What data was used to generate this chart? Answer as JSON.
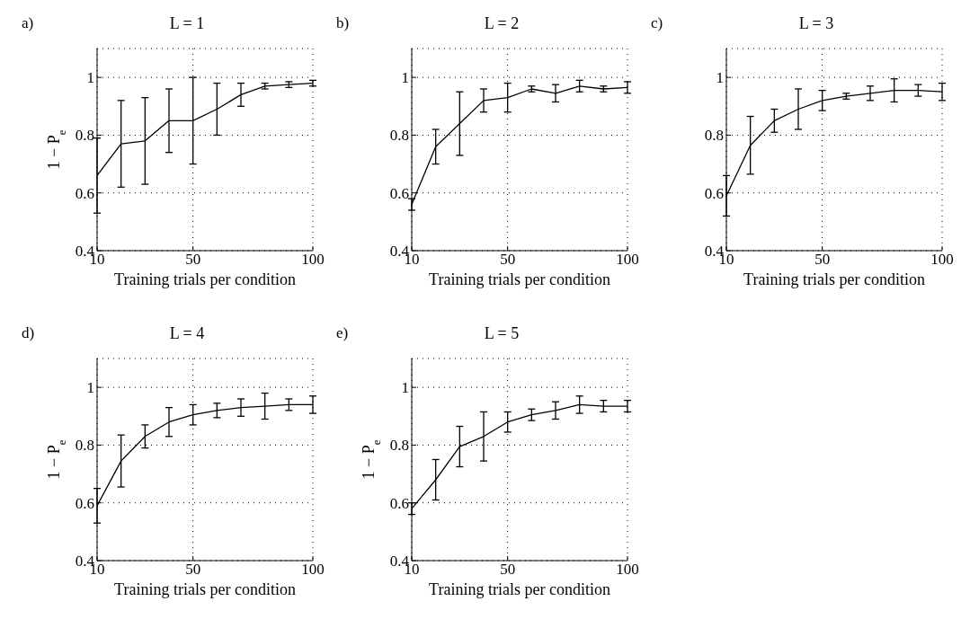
{
  "chart_data": [
    {
      "type": "line",
      "title": "L = 1",
      "xlabel": "Training trials per condition",
      "ylabel": "1 − P$_{e}$",
      "annotations": [
        "a)"
      ],
      "x": [
        10,
        20,
        30,
        40,
        50,
        60,
        70,
        80,
        90,
        100
      ],
      "series": [
        {
          "color": "#000000",
          "values": [
            0.66,
            0.77,
            0.78,
            0.85,
            0.85,
            0.89,
            0.94,
            0.97,
            0.975,
            0.98
          ],
          "errors": [
            0.13,
            0.15,
            0.15,
            0.11,
            0.15,
            0.09,
            0.04,
            0.01,
            0.01,
            0.01
          ]
        }
      ],
      "xlim": [
        10,
        100
      ],
      "xticks": [
        10,
        50,
        100
      ],
      "ylim": [
        0.4,
        1.1
      ],
      "yticks": [
        0.4,
        0.6,
        0.8,
        1
      ],
      "grid": true,
      "marker": "none",
      "line_style": "solid"
    },
    {
      "type": "line",
      "title": "L = 2",
      "xlabel": "Training trials per condition",
      "annotations": [
        "b)"
      ],
      "x": [
        10,
        20,
        30,
        40,
        50,
        60,
        70,
        80,
        90,
        100
      ],
      "series": [
        {
          "color": "#000000",
          "values": [
            0.56,
            0.76,
            0.84,
            0.92,
            0.93,
            0.96,
            0.945,
            0.97,
            0.96,
            0.965
          ],
          "errors": [
            0.02,
            0.06,
            0.11,
            0.04,
            0.05,
            0.01,
            0.03,
            0.02,
            0.01,
            0.02
          ]
        }
      ],
      "xlim": [
        10,
        100
      ],
      "xticks": [
        10,
        50,
        100
      ],
      "ylim": [
        0.4,
        1.1
      ],
      "yticks": [
        0.4,
        0.6,
        0.8,
        1
      ],
      "grid": true,
      "marker": "none",
      "line_style": "solid"
    },
    {
      "type": "line",
      "title": "L = 3",
      "xlabel": "Training trials per condition",
      "annotations": [
        "c)"
      ],
      "x": [
        10,
        20,
        30,
        40,
        50,
        60,
        70,
        80,
        90,
        100
      ],
      "series": [
        {
          "color": "#000000",
          "values": [
            0.59,
            0.765,
            0.85,
            0.89,
            0.92,
            0.935,
            0.945,
            0.955,
            0.955,
            0.95
          ],
          "errors": [
            0.07,
            0.1,
            0.04,
            0.07,
            0.035,
            0.01,
            0.025,
            0.04,
            0.02,
            0.03
          ]
        }
      ],
      "xlim": [
        10,
        100
      ],
      "xticks": [
        10,
        50,
        100
      ],
      "ylim": [
        0.4,
        1.1
      ],
      "yticks": [
        0.4,
        0.6,
        0.8,
        1
      ],
      "grid": true,
      "marker": "none",
      "line_style": "solid"
    },
    {
      "type": "line",
      "title": "L = 4",
      "xlabel": "Training trials per condition",
      "ylabel": "1 − P$_{e}$",
      "annotations": [
        "d)"
      ],
      "x": [
        10,
        20,
        30,
        40,
        50,
        60,
        70,
        80,
        90,
        100
      ],
      "series": [
        {
          "color": "#000000",
          "values": [
            0.59,
            0.745,
            0.83,
            0.88,
            0.905,
            0.92,
            0.93,
            0.935,
            0.94,
            0.94
          ],
          "errors": [
            0.06,
            0.09,
            0.04,
            0.05,
            0.035,
            0.025,
            0.03,
            0.045,
            0.02,
            0.03
          ]
        }
      ],
      "xlim": [
        10,
        100
      ],
      "xticks": [
        10,
        50,
        100
      ],
      "ylim": [
        0.4,
        1.1
      ],
      "yticks": [
        0.4,
        0.6,
        0.8,
        1
      ],
      "grid": true,
      "marker": "none",
      "line_style": "solid"
    },
    {
      "type": "line",
      "title": "L = 5",
      "xlabel": "Training trials per condition",
      "ylabel": "1 − P$_{e}$",
      "annotations": [
        "e)"
      ],
      "x": [
        10,
        20,
        30,
        40,
        50,
        60,
        70,
        80,
        90,
        100
      ],
      "series": [
        {
          "color": "#000000",
          "values": [
            0.58,
            0.68,
            0.795,
            0.83,
            0.88,
            0.905,
            0.92,
            0.94,
            0.935,
            0.935
          ],
          "errors": [
            0.02,
            0.07,
            0.07,
            0.085,
            0.035,
            0.02,
            0.03,
            0.03,
            0.02,
            0.02
          ]
        }
      ],
      "xlim": [
        10,
        100
      ],
      "xticks": [
        10,
        50,
        100
      ],
      "ylim": [
        0.4,
        1.1
      ],
      "yticks": [
        0.4,
        0.6,
        0.8,
        1
      ],
      "grid": true,
      "marker": "none",
      "line_style": "solid"
    }
  ]
}
